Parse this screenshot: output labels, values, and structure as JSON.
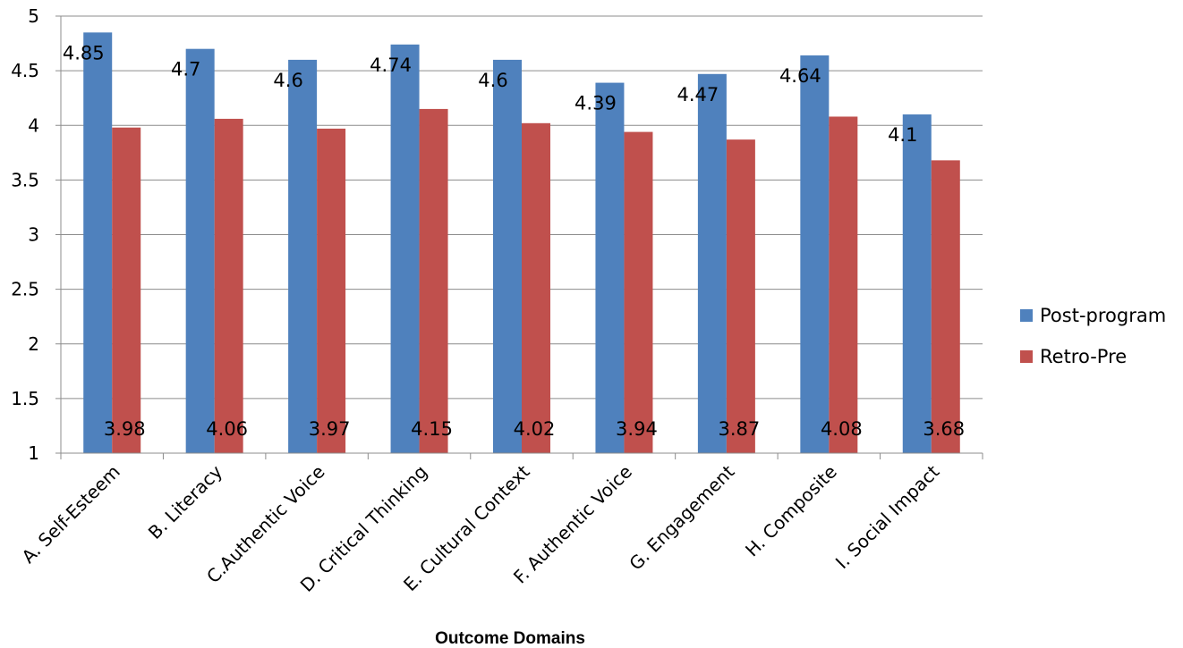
{
  "chart_data": {
    "type": "bar",
    "title": "",
    "xlabel": "Outcome Domains",
    "ylabel": "",
    "ylim": [
      1,
      5
    ],
    "yticks": [
      "1",
      "1.5",
      "2",
      "2.5",
      "3",
      "3.5",
      "4",
      "4.5",
      "5"
    ],
    "grid": true,
    "legend_position": "right",
    "categories": [
      "A. Self-Esteem",
      "B. Literacy",
      "C.Authentic Voice",
      "D. Critical Thinking",
      "E. Cultural Context",
      "F. Authentic Voice",
      "G. Engagement",
      "H. Composite",
      "I. Social Impact"
    ],
    "series": [
      {
        "name": "Post-program",
        "color": "#4F81BD",
        "values": [
          4.85,
          4.7,
          4.6,
          4.74,
          4.6,
          4.39,
          4.47,
          4.64,
          4.1
        ],
        "labels": [
          "4.85",
          "4.7",
          "4.6",
          "4.74",
          "4.6",
          "4.39",
          "4.47",
          "4.64",
          "4.1"
        ]
      },
      {
        "name": "Retro-Pre",
        "color": "#C0504D",
        "values": [
          3.98,
          4.06,
          3.97,
          4.15,
          4.02,
          3.94,
          3.87,
          4.08,
          3.68
        ],
        "labels": [
          "3.98",
          "4.06",
          "3.97",
          "4.15",
          "4.02",
          "3.94",
          "3.87",
          "4.08",
          "3.68"
        ]
      }
    ]
  }
}
